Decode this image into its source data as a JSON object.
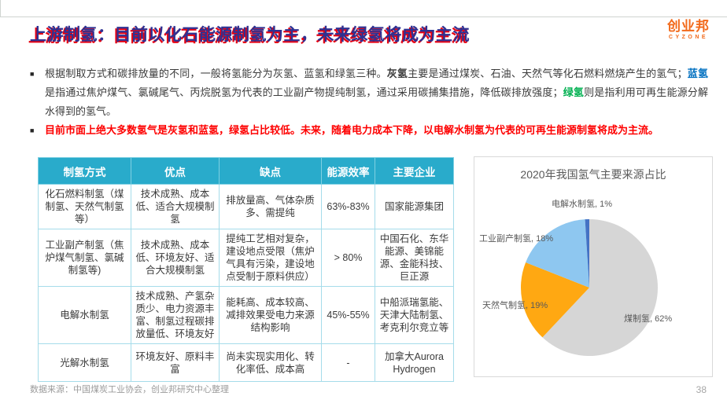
{
  "slide": {
    "title": "上游制氢：目前以化石能源制氢为主，未来绿氢将成为主流",
    "footer": "数据来源：中国煤炭工业协会，创业邦研究中心整理",
    "page_number": "38"
  },
  "logo": {
    "name": "创业邦",
    "subtitle": "CYZONE",
    "color": "#f26a1b"
  },
  "bullets": [
    {
      "segments": [
        {
          "text": "根据制取方式和碳排放量的不同，一般将氢能分为灰氢、蓝氢和绿氢三种。",
          "style": "normal"
        },
        {
          "text": "灰氢",
          "style": "bold"
        },
        {
          "text": "主要是通过煤炭、石油、天然气等化石燃料燃烧产生的氢气；",
          "style": "normal"
        },
        {
          "text": "蓝氢",
          "style": "blue"
        },
        {
          "text": "是指通过焦炉煤气、氯碱尾气、丙烷脱氢为代表的工业副产物提纯制氢，通过采用碳捕集措施，降低碳排放强度；",
          "style": "normal"
        },
        {
          "text": "绿氢",
          "style": "green"
        },
        {
          "text": "则是指利用可再生能源分解水得到的氢气。",
          "style": "normal"
        }
      ]
    },
    {
      "segments": [
        {
          "text": "目前市面上绝大多数氢气是灰氢和蓝氢，绿氢占比较低。未来，随着电力成本下降，以电解水制氢为代表的可再生能源制氢将成为主流。",
          "style": "red"
        }
      ]
    }
  ],
  "table": {
    "headers": [
      "制氢方式",
      "优点",
      "缺点",
      "能源效率",
      "主要企业"
    ],
    "rows": [
      [
        "化石燃料制氢（煤制氢、天然气制氢等）",
        "技术成熟、成本低、适合大规模制氢",
        "排放量高、气体杂质多、需提纯",
        "63%-83%",
        "国家能源集团"
      ],
      [
        "工业副产制氢（焦炉煤气制氢、氯碱制氢等)",
        "技术成熟、成本低、环境友好、适合大规模制氢",
        "提纯工艺相对复杂，建设地点受限（焦炉气具有污染，建设地点受制于原料供应）",
        "> 80%",
        "中国石化、东华能源、美锦能源、金能科技、巨正源"
      ],
      [
        "电解水制氢",
        "技术成熟、产氢杂质少、电力资源丰富、制氢过程碳排放量低、环境友好",
        "能耗高、成本较高、减排效果受电力来源结构影响",
        "45%-55%",
        "中船派瑞氢能、天津大陆制氢、考克利尔竞立等"
      ],
      [
        "光解水制氢",
        "环境友好、原料丰富",
        "尚未实现实用化、转化率低、成本高",
        "-",
        "加拿大Aurora Hydrogen"
      ]
    ]
  },
  "chart_data": {
    "type": "pie",
    "title": "2020年我国氢气主要来源占比",
    "start_angle_deg": 0,
    "direction": "clockwise",
    "slices": [
      {
        "label": "煤制氢",
        "value": 62,
        "color": "#d6d6d6"
      },
      {
        "label": "天然气制氢",
        "value": 19,
        "color": "#ffa812"
      },
      {
        "label": "工业副产制氢",
        "value": 18,
        "color": "#8ec7f0"
      },
      {
        "label": "电解水制氢",
        "value": 1,
        "color": "#4472c4"
      }
    ],
    "legend_position": "data-labels"
  },
  "colors": {
    "title_navy": "#2e3192",
    "title_shadow_red": "#e60012",
    "table_header_bg": "#29abcb",
    "highlight_red": "#fe0000",
    "blue_hydrogen": "#0070c0",
    "green_hydrogen": "#00b050"
  }
}
